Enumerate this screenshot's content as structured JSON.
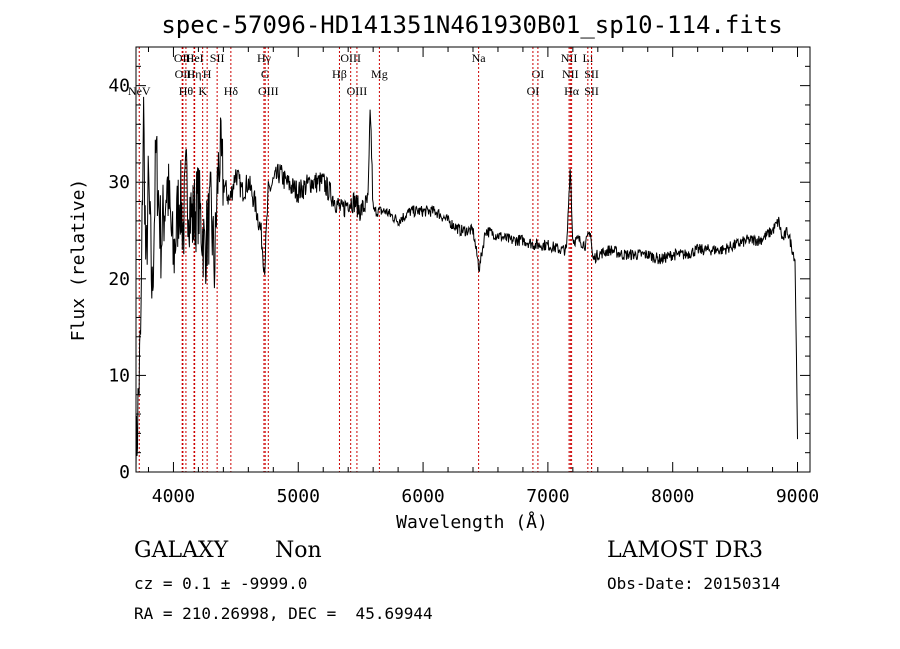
{
  "chart_data": {
    "type": "line",
    "title": "spec-57096-HD141351N461930B01_sp10-114.fits",
    "xlabel": "Wavelength (Å)",
    "ylabel": "Flux (relative)",
    "xlim": [
      3700,
      9100
    ],
    "ylim": [
      0,
      44
    ],
    "x_ticks": [
      4000,
      5000,
      6000,
      7000,
      8000,
      9000
    ],
    "x_tick_labels": [
      "4000",
      "5000",
      "6000",
      "7000",
      "8000",
      "9000"
    ],
    "y_ticks": [
      0,
      10,
      20,
      30,
      40
    ],
    "y_tick_labels": [
      "0",
      "10",
      "20",
      "30",
      "40"
    ],
    "series": [
      {
        "name": "flux",
        "x": [
          3700,
          3720,
          3740,
          3760,
          3780,
          3800,
          3830,
          3860,
          3900,
          3950,
          4000,
          4050,
          4080,
          4100,
          4150,
          4200,
          4250,
          4300,
          4330,
          4350,
          4370,
          4400,
          4450,
          4500,
          4550,
          4600,
          4650,
          4700,
          4730,
          4760,
          4800,
          4850,
          4900,
          5000,
          5100,
          5200,
          5300,
          5350,
          5400,
          5450,
          5500,
          5560,
          5577,
          5600,
          5650,
          5700,
          5800,
          5900,
          6000,
          6100,
          6200,
          6300,
          6400,
          6450,
          6500,
          6600,
          6700,
          6800,
          6900,
          7000,
          7100,
          7150,
          7180,
          7190,
          7200,
          7250,
          7300,
          7340,
          7360,
          7400,
          7500,
          7600,
          7700,
          7800,
          7900,
          8000,
          8100,
          8200,
          8300,
          8400,
          8500,
          8600,
          8700,
          8800,
          8850,
          8880,
          8920,
          8960,
          8980,
          9000
        ],
        "y": [
          0.5,
          8,
          15,
          38,
          20,
          30,
          18,
          33,
          24,
          30,
          22,
          29,
          25,
          30,
          26,
          28,
          23,
          27,
          21,
          29,
          33,
          30,
          28,
          31,
          29,
          30,
          28,
          25,
          21,
          29,
          30,
          31,
          30,
          29,
          30,
          30,
          28,
          27,
          28,
          28,
          27,
          28,
          38,
          27,
          27,
          27,
          26,
          27,
          27,
          27,
          26,
          25,
          25,
          21,
          25,
          24.5,
          24,
          24,
          23.5,
          23.5,
          23,
          23,
          32,
          27,
          24,
          24,
          23.5,
          25,
          22,
          22.5,
          23,
          22.5,
          22.5,
          22.5,
          22,
          22.5,
          22.5,
          23,
          23,
          23,
          23.5,
          24,
          24,
          25,
          26,
          24,
          25,
          23,
          22,
          4
        ]
      }
    ],
    "line_markers": [
      {
        "label": "NeV",
        "wavelength": 3726,
        "row": 2
      },
      {
        "label": "OII",
        "wavelength": 4070,
        "row": 0
      },
      {
        "label": "OII",
        "wavelength": 4076,
        "row": 1
      },
      {
        "label": "Hθ",
        "wavelength": 4100,
        "row": 2
      },
      {
        "label": "HeI",
        "wavelength": 4170,
        "row": 0
      },
      {
        "label": "Hη",
        "wavelength": 4165,
        "row": 1
      },
      {
        "label": "K",
        "wavelength": 4234,
        "row": 2
      },
      {
        "label": "H",
        "wavelength": 4270,
        "row": 1
      },
      {
        "label": "SII",
        "wavelength": 4350,
        "row": 0
      },
      {
        "label": "Hδ",
        "wavelength": 4460,
        "row": 2
      },
      {
        "label": "Hγ",
        "wavelength": 4725,
        "row": 0
      },
      {
        "label": "G",
        "wavelength": 4735,
        "row": 1
      },
      {
        "label": "OIII",
        "wavelength": 4760,
        "row": 2
      },
      {
        "label": "Hβ",
        "wavelength": 5330,
        "row": 1
      },
      {
        "label": "OIII",
        "wavelength": 5420,
        "row": 0
      },
      {
        "label": "OIII",
        "wavelength": 5470,
        "row": 2
      },
      {
        "label": "Mg",
        "wavelength": 5650,
        "row": 1
      },
      {
        "label": "Na",
        "wavelength": 6445,
        "row": 0
      },
      {
        "label": "OI",
        "wavelength": 6920,
        "row": 1
      },
      {
        "label": "OI",
        "wavelength": 6880,
        "row": 2
      },
      {
        "label": "NII",
        "wavelength": 7170,
        "row": 0
      },
      {
        "label": "NII",
        "wavelength": 7180,
        "row": 1
      },
      {
        "label": "Hα",
        "wavelength": 7190,
        "row": 2
      },
      {
        "label": "Li",
        "wavelength": 7320,
        "row": 0
      },
      {
        "label": "SII",
        "wavelength": 7350,
        "row": 1
      },
      {
        "label": "SII",
        "wavelength": 7350,
        "row": 2
      }
    ],
    "grid": false,
    "legend": "none"
  },
  "info": {
    "object_class": "GALAXY",
    "subclass": "Non",
    "survey": "LAMOST DR3",
    "cz": "cz = 0.1 ± -9999.0",
    "obs_date": "Obs-Date: 20150314",
    "coords": "RA = 210.26998, DEC =  45.69944"
  },
  "colors": {
    "marker_line": "#cc0000",
    "spectrum": "#000000",
    "axes": "#000000",
    "background": "#ffffff"
  }
}
